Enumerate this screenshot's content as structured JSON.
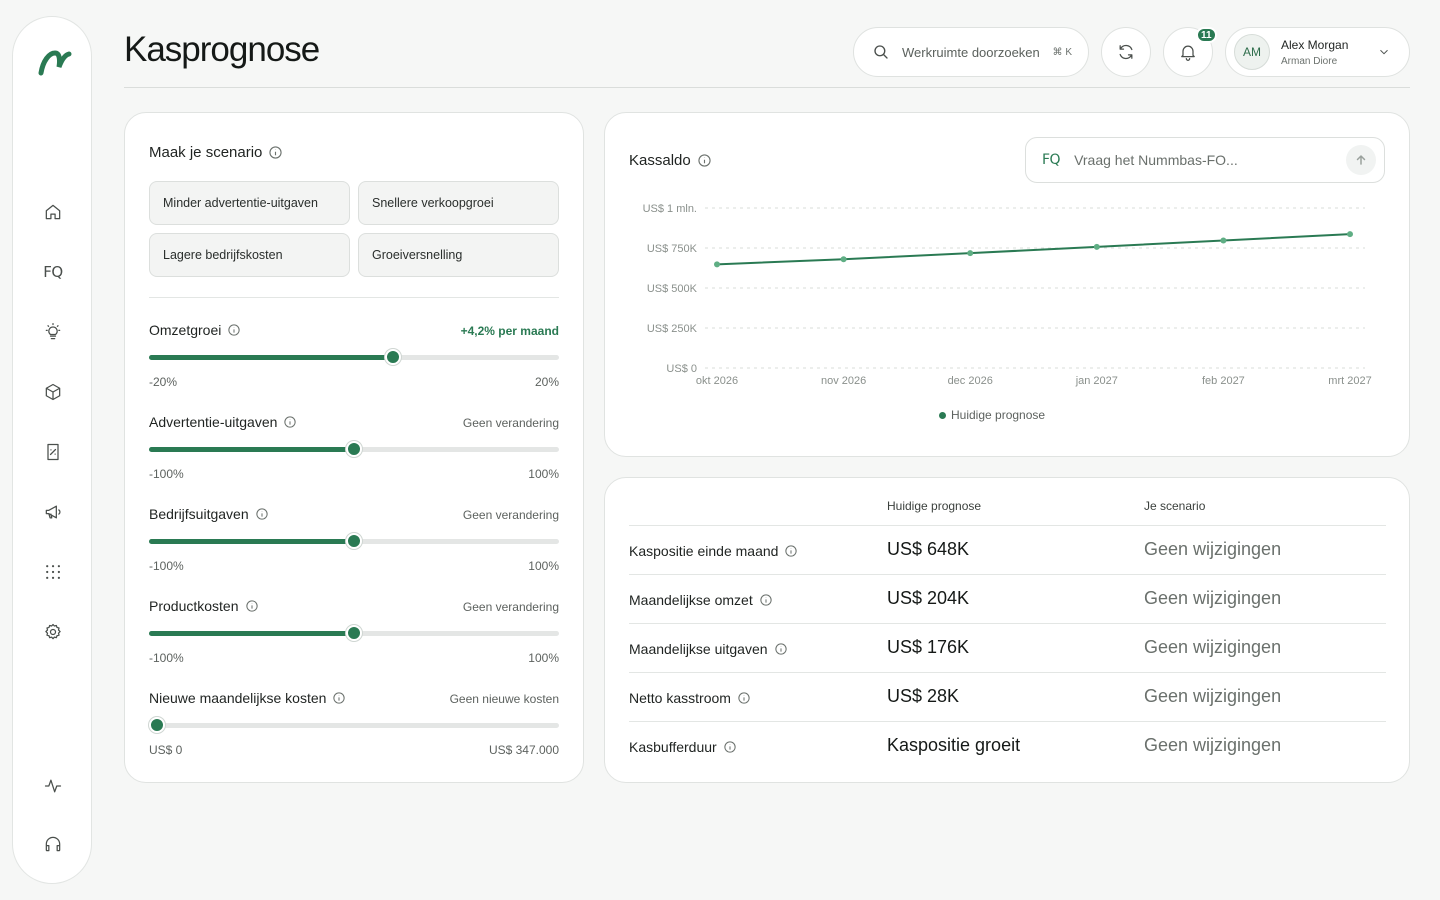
{
  "page": {
    "title": "Kasprognose"
  },
  "header": {
    "search_placeholder": "Werkruimte doorzoeken",
    "search_shortcut": "⌘ K",
    "notification_count": "11",
    "user": {
      "initials": "AM",
      "name": "Alex Morgan",
      "org": "Arman Diore"
    }
  },
  "sidebar": {
    "items": [
      {
        "icon": "home-icon"
      },
      {
        "icon": "fq-icon",
        "label": "FQ"
      },
      {
        "icon": "lightbulb-icon"
      },
      {
        "icon": "box-icon"
      },
      {
        "icon": "receipt-icon"
      },
      {
        "icon": "megaphone-icon"
      },
      {
        "icon": "grid-icon"
      },
      {
        "icon": "gear-icon"
      },
      {
        "icon": "activity-icon"
      },
      {
        "icon": "headset-icon"
      }
    ]
  },
  "scenario": {
    "title": "Maak je scenario",
    "presets": [
      "Minder advertentie-uitgaven",
      "Snellere verkoopgroei",
      "Lagere bedrijfskosten",
      "Groeiversnelling"
    ],
    "sliders": [
      {
        "label": "Omzetgroei",
        "status": "+4,2% per maand",
        "min_label": "-20%",
        "max_label": "20%",
        "level": 0.595
      },
      {
        "label": "Advertentie-uitgaven",
        "status": "Geen verandering",
        "min_label": "-100%",
        "max_label": "100%",
        "level": 0.5
      },
      {
        "label": "Bedrijfsuitgaven",
        "status": "Geen verandering",
        "min_label": "-100%",
        "max_label": "100%",
        "level": 0.5
      },
      {
        "label": "Productkosten",
        "status": "Geen verandering",
        "min_label": "-100%",
        "max_label": "100%",
        "level": 0.5
      },
      {
        "label": "Nieuwe maandelijkse kosten",
        "status": "Geen nieuwe kosten",
        "min_label": "US$ 0",
        "max_label": "US$ 347.000",
        "level": 0.02
      }
    ]
  },
  "cash_chart": {
    "title": "Kassaldo",
    "ask_label": "FQ",
    "ask_placeholder": "Vraag het Nummbas-FO...",
    "legend": "Huidige prognose"
  },
  "chart_data": {
    "type": "line",
    "x": [
      "okt 2026",
      "nov 2026",
      "dec 2026",
      "jan 2027",
      "feb 2027",
      "mrt 2027"
    ],
    "y_ticks": [
      "US$ 0",
      "US$ 250K",
      "US$ 500K",
      "US$ 750K",
      "US$ 1 mln."
    ],
    "ylim": [
      0,
      1000000
    ],
    "grid": true,
    "legend_position": "bottom-center",
    "series": [
      {
        "name": "Huidige prognose",
        "values": [
          648000,
          680000,
          718000,
          757000,
          797000,
          837000
        ]
      }
    ]
  },
  "table": {
    "headers": [
      "Huidige prognose",
      "Je scenario"
    ],
    "rows": [
      {
        "label": "Kaspositie einde maand",
        "current": "US$ 648K",
        "scenario": "Geen wijzigingen"
      },
      {
        "label": "Maandelijkse omzet",
        "current": "US$ 204K",
        "scenario": "Geen wijzigingen"
      },
      {
        "label": "Maandelijkse uitgaven",
        "current": "US$ 176K",
        "scenario": "Geen wijzigingen"
      },
      {
        "label": "Netto kasstroom",
        "current": "US$ 28K",
        "scenario": "Geen wijzigingen"
      },
      {
        "label": "Kasbufferduur",
        "current": "Kaspositie groeit",
        "scenario": "Geen wijzigingen"
      }
    ]
  },
  "colors": {
    "accent": "#2a7a53",
    "background": "#f6f7f6"
  }
}
